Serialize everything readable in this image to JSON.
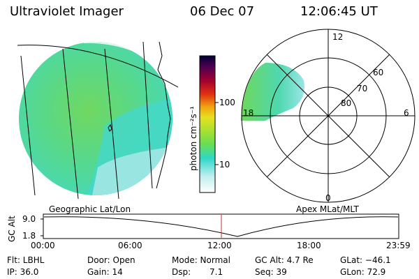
{
  "header": {
    "instrument": "Ultraviolet Imager",
    "date": "06 Dec 07",
    "time": "12:06:45 UT"
  },
  "colorbar": {
    "unit_label": "photon cm⁻²s⁻¹",
    "ticks": [
      "100",
      "10"
    ]
  },
  "geo_panel": {
    "label": "Geographic Lat/Lon"
  },
  "apex_panel": {
    "label": "Apex MLat/MLT",
    "mlt_labels": [
      "12",
      "18",
      "6",
      "0"
    ],
    "mlat_labels": [
      "60",
      "70",
      "80"
    ]
  },
  "timeline": {
    "ylabel": "GC Alt",
    "y_ticks": [
      "9.0",
      "1.8"
    ],
    "x_ticks": [
      "00:00",
      "06:00",
      "12:00",
      "18:00",
      "23:59"
    ]
  },
  "info": {
    "flt": "Flt: LBHL",
    "ip": "IP: 36.0",
    "door": "Door: Open",
    "gain": "Gain: 14",
    "mode": "Mode: Normal",
    "dsp_label": "Dsp:",
    "dsp_value": "7.1",
    "gc_alt": "GC Alt: 4.7 Re",
    "seq": "Seq: 39",
    "glat": "GLat: −46.1",
    "glon": "GLon: 72.9"
  },
  "colors": {
    "aurora_green": "#7fd84a",
    "aurora_cyan": "#45d8c8",
    "aurora_light": "#aee8e8",
    "marker_red": "#c83030"
  }
}
